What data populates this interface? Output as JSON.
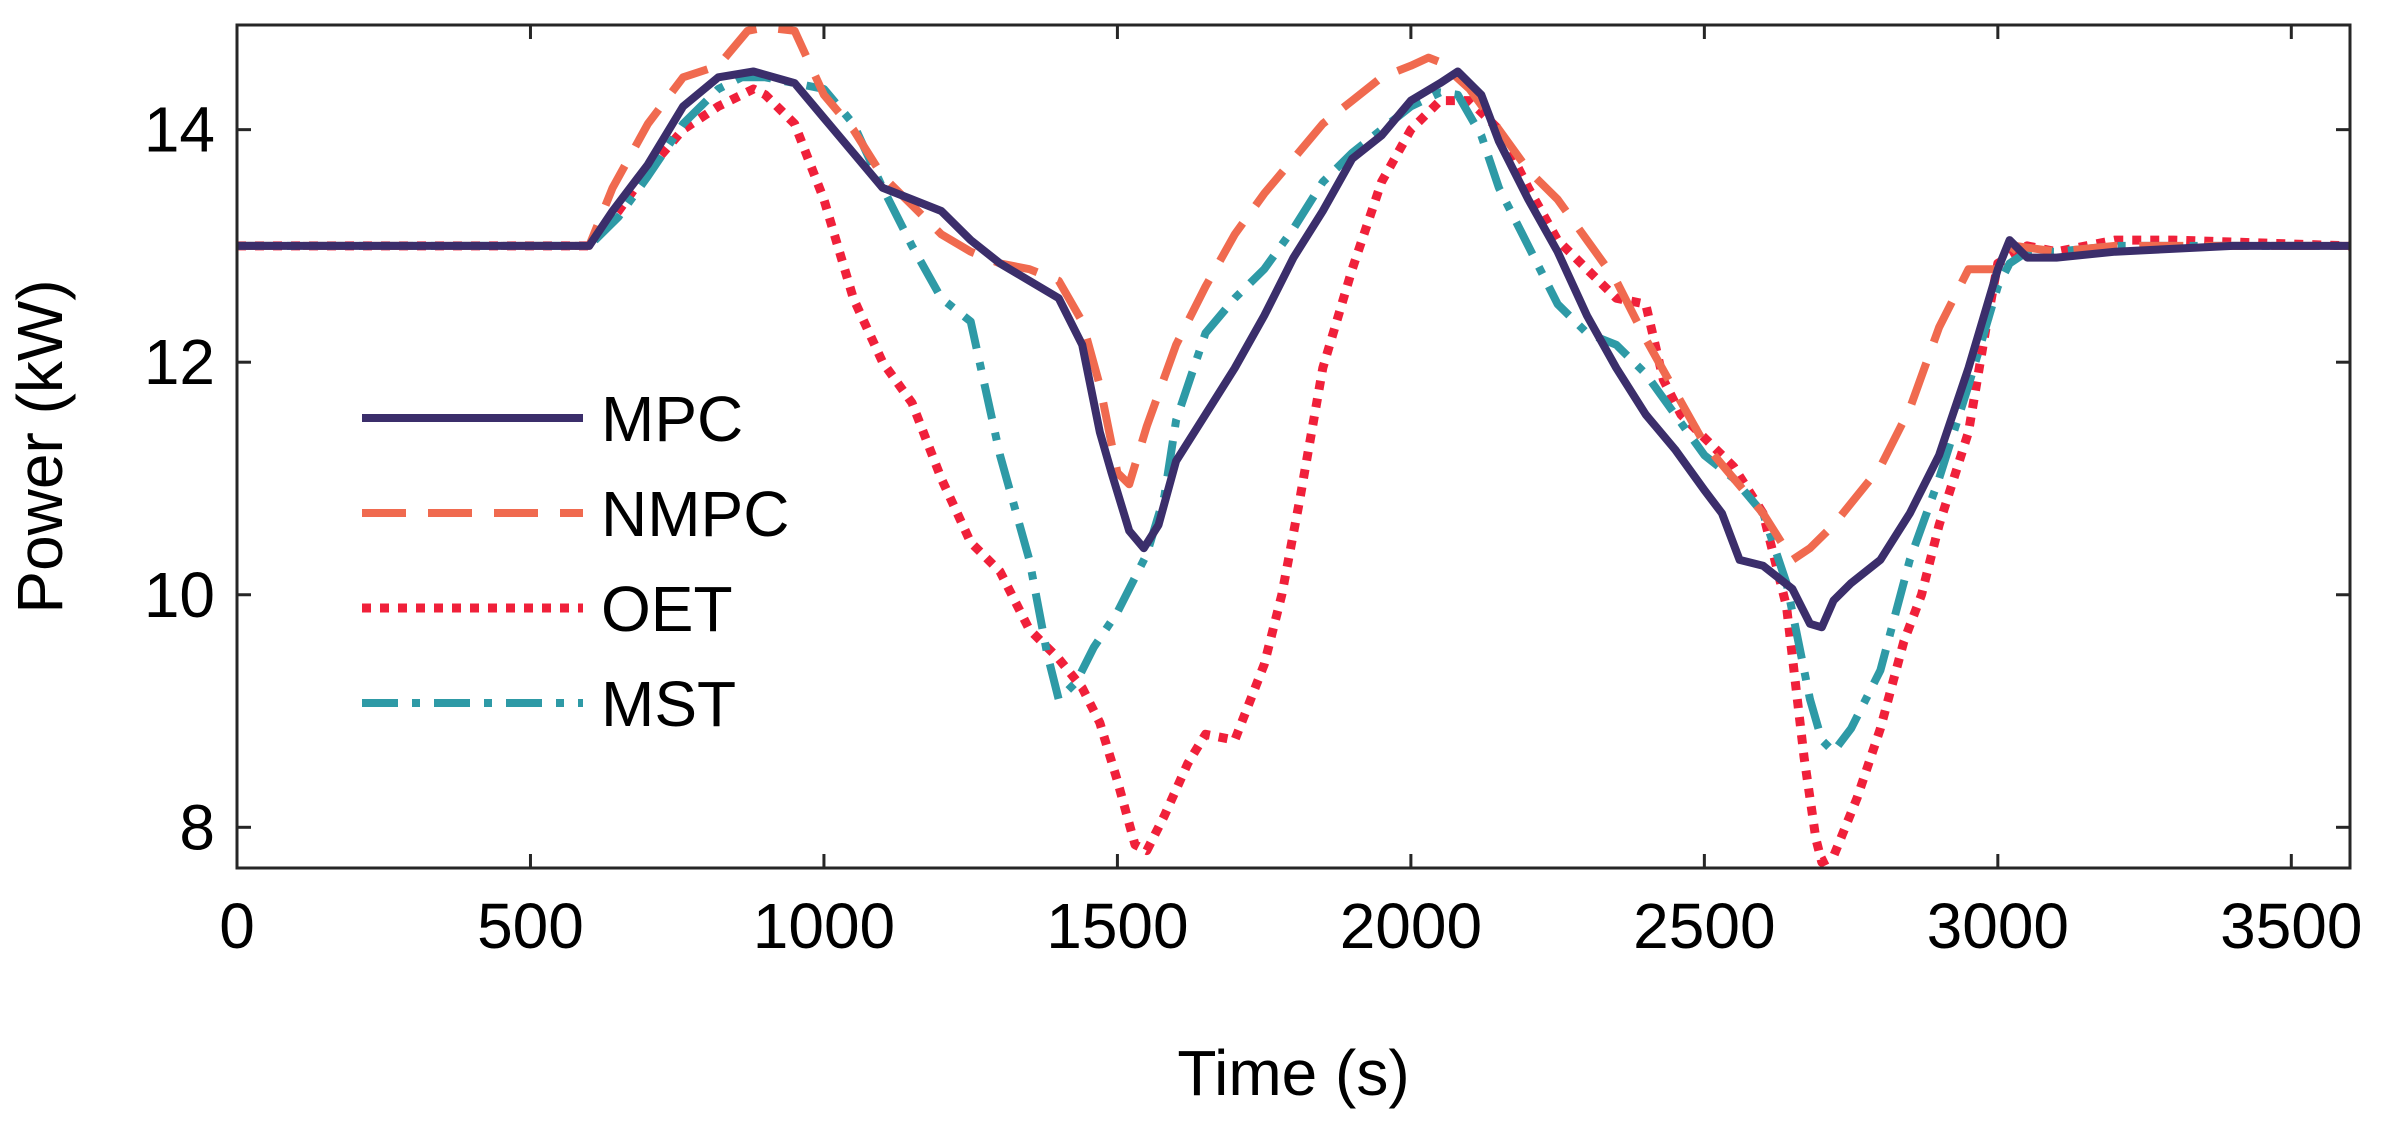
{
  "chart_data": {
    "type": "line",
    "title": "",
    "xlabel": "Time (s)",
    "ylabel": "Power (kW)",
    "xlim": [
      0,
      3600
    ],
    "ylim": [
      7.65,
      14.9
    ],
    "xticks": [
      0,
      500,
      1000,
      1500,
      2000,
      2500,
      3000,
      3500
    ],
    "yticks": [
      8,
      10,
      12,
      14
    ],
    "xtick_labels": [
      "0",
      "500",
      "1000",
      "1500",
      "2000",
      "2500",
      "3000",
      "3500"
    ],
    "ytick_labels": [
      "8",
      "10",
      "12",
      "14"
    ],
    "grid": false,
    "legend_position": "center-left",
    "series": [
      {
        "name": "MPC",
        "color": "#3b2e6b",
        "style": "solid",
        "points": [
          [
            0,
            13
          ],
          [
            600,
            13
          ],
          [
            640,
            13.3
          ],
          [
            700,
            13.7
          ],
          [
            760,
            14.2
          ],
          [
            820,
            14.45
          ],
          [
            880,
            14.5
          ],
          [
            950,
            14.4
          ],
          [
            1000,
            14.1
          ],
          [
            1050,
            13.8
          ],
          [
            1100,
            13.5
          ],
          [
            1150,
            13.4
          ],
          [
            1200,
            13.3
          ],
          [
            1250,
            13.05
          ],
          [
            1300,
            12.85
          ],
          [
            1350,
            12.7
          ],
          [
            1400,
            12.55
          ],
          [
            1440,
            12.15
          ],
          [
            1470,
            11.4
          ],
          [
            1490,
            11.05
          ],
          [
            1520,
            10.55
          ],
          [
            1545,
            10.4
          ],
          [
            1570,
            10.6
          ],
          [
            1600,
            11.15
          ],
          [
            1650,
            11.55
          ],
          [
            1700,
            11.95
          ],
          [
            1750,
            12.4
          ],
          [
            1800,
            12.9
          ],
          [
            1850,
            13.3
          ],
          [
            1900,
            13.75
          ],
          [
            1950,
            13.95
          ],
          [
            2000,
            14.25
          ],
          [
            2050,
            14.4
          ],
          [
            2080,
            14.5
          ],
          [
            2120,
            14.3
          ],
          [
            2150,
            13.9
          ],
          [
            2200,
            13.4
          ],
          [
            2250,
            12.95
          ],
          [
            2300,
            12.4
          ],
          [
            2350,
            11.95
          ],
          [
            2400,
            11.55
          ],
          [
            2450,
            11.25
          ],
          [
            2500,
            10.9
          ],
          [
            2530,
            10.7
          ],
          [
            2560,
            10.3
          ],
          [
            2600,
            10.25
          ],
          [
            2650,
            10.05
          ],
          [
            2680,
            9.75
          ],
          [
            2700,
            9.72
          ],
          [
            2720,
            9.95
          ],
          [
            2750,
            10.1
          ],
          [
            2800,
            10.3
          ],
          [
            2850,
            10.7
          ],
          [
            2900,
            11.2
          ],
          [
            2950,
            11.95
          ],
          [
            3000,
            12.8
          ],
          [
            3020,
            13.05
          ],
          [
            3050,
            12.9
          ],
          [
            3100,
            12.9
          ],
          [
            3200,
            12.95
          ],
          [
            3400,
            13
          ],
          [
            3600,
            13
          ]
        ]
      },
      {
        "name": "NMPC",
        "color": "#f06a4f",
        "style": "dashed",
        "points": [
          [
            0,
            13
          ],
          [
            600,
            13
          ],
          [
            640,
            13.5
          ],
          [
            700,
            14.05
          ],
          [
            760,
            14.45
          ],
          [
            820,
            14.55
          ],
          [
            870,
            14.85
          ],
          [
            900,
            14.88
          ],
          [
            950,
            14.85
          ],
          [
            1000,
            14.3
          ],
          [
            1050,
            14.0
          ],
          [
            1100,
            13.6
          ],
          [
            1150,
            13.35
          ],
          [
            1200,
            13.1
          ],
          [
            1250,
            12.95
          ],
          [
            1300,
            12.85
          ],
          [
            1350,
            12.8
          ],
          [
            1400,
            12.7
          ],
          [
            1440,
            12.35
          ],
          [
            1470,
            11.8
          ],
          [
            1500,
            11.05
          ],
          [
            1520,
            10.95
          ],
          [
            1550,
            11.45
          ],
          [
            1600,
            12.15
          ],
          [
            1650,
            12.65
          ],
          [
            1700,
            13.1
          ],
          [
            1750,
            13.45
          ],
          [
            1800,
            13.75
          ],
          [
            1850,
            14.05
          ],
          [
            1900,
            14.25
          ],
          [
            1950,
            14.45
          ],
          [
            2000,
            14.55
          ],
          [
            2030,
            14.62
          ],
          [
            2050,
            14.58
          ],
          [
            2100,
            14.35
          ],
          [
            2150,
            14.0
          ],
          [
            2200,
            13.65
          ],
          [
            2250,
            13.4
          ],
          [
            2300,
            13.05
          ],
          [
            2350,
            12.7
          ],
          [
            2400,
            12.2
          ],
          [
            2450,
            11.75
          ],
          [
            2500,
            11.3
          ],
          [
            2550,
            11.0
          ],
          [
            2600,
            10.7
          ],
          [
            2650,
            10.3
          ],
          [
            2680,
            10.4
          ],
          [
            2720,
            10.6
          ],
          [
            2760,
            10.85
          ],
          [
            2800,
            11.1
          ],
          [
            2850,
            11.6
          ],
          [
            2900,
            12.3
          ],
          [
            2950,
            12.8
          ],
          [
            3000,
            12.8
          ],
          [
            3030,
            13.0
          ],
          [
            3100,
            12.95
          ],
          [
            3200,
            13
          ],
          [
            3600,
            13
          ]
        ]
      },
      {
        "name": "OET",
        "color": "#f0203a",
        "style": "dotted",
        "points": [
          [
            0,
            13
          ],
          [
            600,
            13
          ],
          [
            650,
            13.3
          ],
          [
            700,
            13.65
          ],
          [
            760,
            14.0
          ],
          [
            820,
            14.2
          ],
          [
            880,
            14.35
          ],
          [
            900,
            14.3
          ],
          [
            950,
            14.05
          ],
          [
            1000,
            13.4
          ],
          [
            1050,
            12.55
          ],
          [
            1100,
            12.0
          ],
          [
            1150,
            11.65
          ],
          [
            1200,
            11.0
          ],
          [
            1250,
            10.45
          ],
          [
            1300,
            10.2
          ],
          [
            1350,
            9.7
          ],
          [
            1400,
            9.45
          ],
          [
            1440,
            9.2
          ],
          [
            1470,
            8.9
          ],
          [
            1500,
            8.4
          ],
          [
            1530,
            7.85
          ],
          [
            1550,
            7.8
          ],
          [
            1580,
            8.1
          ],
          [
            1620,
            8.55
          ],
          [
            1650,
            8.8
          ],
          [
            1700,
            8.75
          ],
          [
            1750,
            9.4
          ],
          [
            1780,
            10.0
          ],
          [
            1810,
            10.8
          ],
          [
            1850,
            11.95
          ],
          [
            1900,
            12.8
          ],
          [
            1950,
            13.55
          ],
          [
            2000,
            14.0
          ],
          [
            2050,
            14.25
          ],
          [
            2100,
            14.25
          ],
          [
            2150,
            14.0
          ],
          [
            2200,
            13.5
          ],
          [
            2250,
            13.05
          ],
          [
            2300,
            12.8
          ],
          [
            2350,
            12.55
          ],
          [
            2400,
            12.5
          ],
          [
            2430,
            11.85
          ],
          [
            2460,
            11.55
          ],
          [
            2500,
            11.35
          ],
          [
            2550,
            11.1
          ],
          [
            2600,
            10.7
          ],
          [
            2640,
            9.9
          ],
          [
            2670,
            8.6
          ],
          [
            2690,
            7.9
          ],
          [
            2700,
            7.7
          ],
          [
            2720,
            7.75
          ],
          [
            2760,
            8.25
          ],
          [
            2800,
            8.85
          ],
          [
            2840,
            9.6
          ],
          [
            2870,
            10.0
          ],
          [
            2900,
            10.6
          ],
          [
            2950,
            11.4
          ],
          [
            2980,
            12.3
          ],
          [
            3000,
            12.85
          ],
          [
            3050,
            13.0
          ],
          [
            3100,
            12.95
          ],
          [
            3200,
            13.05
          ],
          [
            3300,
            13.05
          ],
          [
            3600,
            13.0
          ]
        ]
      },
      {
        "name": "MST",
        "color": "#2e9aa6",
        "style": "dashdot",
        "points": [
          [
            0,
            13
          ],
          [
            600,
            13
          ],
          [
            650,
            13.25
          ],
          [
            700,
            13.6
          ],
          [
            760,
            14.05
          ],
          [
            820,
            14.35
          ],
          [
            860,
            14.45
          ],
          [
            900,
            14.45
          ],
          [
            950,
            14.4
          ],
          [
            1000,
            14.35
          ],
          [
            1050,
            14.05
          ],
          [
            1100,
            13.5
          ],
          [
            1150,
            13.0
          ],
          [
            1200,
            12.55
          ],
          [
            1250,
            12.35
          ],
          [
            1300,
            11.2
          ],
          [
            1350,
            10.3
          ],
          [
            1380,
            9.5
          ],
          [
            1400,
            9.1
          ],
          [
            1430,
            9.25
          ],
          [
            1460,
            9.55
          ],
          [
            1500,
            9.85
          ],
          [
            1550,
            10.35
          ],
          [
            1580,
            10.85
          ],
          [
            1600,
            11.5
          ],
          [
            1650,
            12.25
          ],
          [
            1700,
            12.55
          ],
          [
            1750,
            12.8
          ],
          [
            1800,
            13.15
          ],
          [
            1850,
            13.55
          ],
          [
            1900,
            13.8
          ],
          [
            1950,
            14.0
          ],
          [
            2000,
            14.2
          ],
          [
            2050,
            14.32
          ],
          [
            2080,
            14.3
          ],
          [
            2120,
            13.95
          ],
          [
            2150,
            13.5
          ],
          [
            2200,
            13.0
          ],
          [
            2250,
            12.5
          ],
          [
            2300,
            12.25
          ],
          [
            2350,
            12.15
          ],
          [
            2400,
            11.9
          ],
          [
            2450,
            11.55
          ],
          [
            2500,
            11.2
          ],
          [
            2550,
            11.0
          ],
          [
            2600,
            10.7
          ],
          [
            2640,
            10.1
          ],
          [
            2660,
            9.6
          ],
          [
            2680,
            9.1
          ],
          [
            2700,
            8.75
          ],
          [
            2720,
            8.65
          ],
          [
            2750,
            8.85
          ],
          [
            2800,
            9.35
          ],
          [
            2850,
            10.3
          ],
          [
            2900,
            11.0
          ],
          [
            2950,
            11.8
          ],
          [
            3000,
            12.65
          ],
          [
            3020,
            12.85
          ],
          [
            3050,
            12.95
          ],
          [
            3100,
            12.95
          ],
          [
            3200,
            13.0
          ],
          [
            3600,
            13.0
          ]
        ]
      }
    ]
  }
}
